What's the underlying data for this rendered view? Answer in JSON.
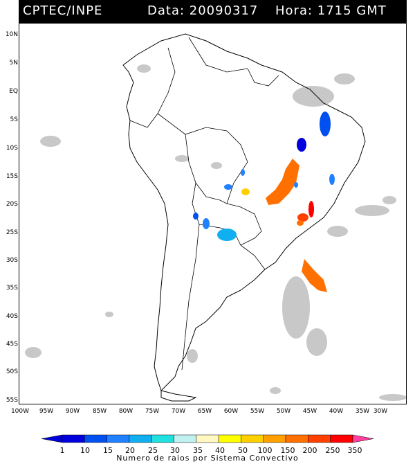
{
  "header": {
    "source": "CPTEC/INPE",
    "date_text": "Data: 20090317",
    "time_text": "Hora: 1715 GMT"
  },
  "latitude_labels": [
    "10N",
    "5N",
    "EQ",
    "5S",
    "10S",
    "15S",
    "20S",
    "25S",
    "30S",
    "35S",
    "40S",
    "45S",
    "50S",
    "55S"
  ],
  "longitude_labels": [
    "100W",
    "95W",
    "90W",
    "85W",
    "80W",
    "75W",
    "70W",
    "65W",
    "60W",
    "55W",
    "50W",
    "45W",
    "40W",
    "35W",
    "30W"
  ],
  "legend": {
    "values": [
      "1",
      "10",
      "15",
      "20",
      "25",
      "30",
      "35",
      "40",
      "50",
      "100",
      "150",
      "200",
      "250",
      "350"
    ],
    "colors": [
      "#0000dd",
      "#0050f0",
      "#2080ff",
      "#10b0f0",
      "#20e0e0",
      "#c0f0f0",
      "#fff8c0",
      "#ffff00",
      "#ffd000",
      "#ffa000",
      "#ff7000",
      "#ff4000",
      "#ff0000",
      "#ff40a0"
    ],
    "caption": "Numero de raios por Sistema Convectivo"
  },
  "colors": {
    "land_outline": "#000000",
    "cloud_gray": "#c8c8c8"
  }
}
